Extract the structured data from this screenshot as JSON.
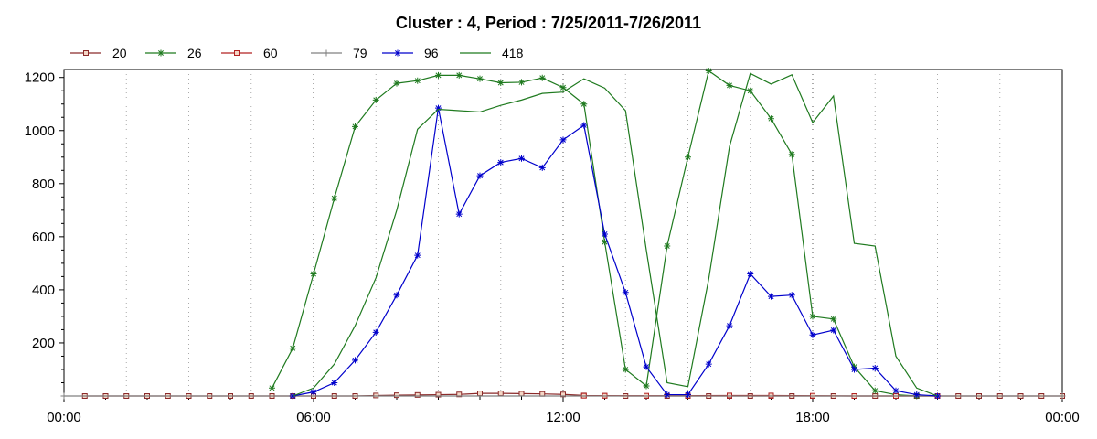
{
  "chart_data": {
    "type": "line",
    "title": "Cluster : 4, Period : 7/25/2011-7/26/2011",
    "x_unit": "hours",
    "x_range": [
      0,
      24
    ],
    "x_ticks": [
      0,
      6,
      12,
      18,
      24
    ],
    "x_tick_labels": [
      "00:00",
      "06:00",
      "12:00",
      "18:00",
      "00:00"
    ],
    "y_range": [
      0,
      1230
    ],
    "y_ticks": [
      200,
      400,
      600,
      800,
      1000,
      1200
    ],
    "y_tick_labels": [
      "200",
      "400",
      "600",
      "800",
      "1000",
      "1200"
    ],
    "grid": "vertical dotted lines",
    "legend_position": "top-left",
    "series": [
      {
        "name": "20",
        "color": "#8b2a2a",
        "marker": "square",
        "x": [
          0.5,
          1,
          1.5,
          2,
          2.5,
          3,
          3.5,
          4,
          4.5,
          5,
          5.5,
          6,
          6.5,
          7,
          7.5,
          8,
          8.5,
          9,
          9.5,
          10,
          10.5,
          11,
          11.5,
          12,
          12.5,
          13,
          13.5,
          14,
          14.5,
          15,
          15.5,
          16,
          16.5,
          17,
          17.5,
          18,
          18.5,
          19,
          19.5,
          20,
          20.5,
          21,
          21.5,
          22,
          22.5,
          23,
          23.5,
          24
        ],
        "y": [
          0,
          0,
          0,
          0,
          0,
          0,
          0,
          0,
          0,
          0,
          0,
          0,
          0,
          0,
          2,
          3,
          4,
          5,
          6,
          10,
          10,
          9,
          8,
          6,
          2,
          1,
          0,
          0,
          0,
          0,
          0,
          0,
          0,
          0,
          0,
          0,
          0,
          0,
          0,
          0,
          0,
          0,
          0,
          0,
          0,
          0,
          0,
          0
        ]
      },
      {
        "name": "26",
        "color": "#1f7a1f",
        "marker": "star",
        "x": [
          5,
          5.5,
          6,
          6.5,
          7,
          7.5,
          8,
          8.5,
          9,
          9.5,
          10,
          10.5,
          11,
          11.5,
          12,
          12.5,
          13,
          13.5,
          14,
          14.5,
          15,
          15.5,
          16,
          16.5,
          17,
          17.5,
          18,
          18.5,
          19,
          19.5,
          20,
          20.5
        ],
        "y": [
          30,
          180,
          460,
          745,
          1015,
          1115,
          1178,
          1188,
          1208,
          1208,
          1195,
          1180,
          1182,
          1198,
          1162,
          1100,
          580,
          100,
          38,
          565,
          900,
          1225,
          1170,
          1150,
          1045,
          910,
          300,
          290,
          110,
          20,
          5,
          0
        ]
      },
      {
        "name": "60",
        "color": "#b22222",
        "marker": "square",
        "x": [
          12.5,
          13,
          14,
          15,
          16,
          17,
          18,
          19,
          20,
          21
        ],
        "y": [
          1,
          1,
          1,
          1,
          2,
          2,
          1,
          0,
          0,
          0
        ]
      },
      {
        "name": "79",
        "color": "#808080",
        "marker": "plus",
        "x": [
          0,
          24
        ],
        "y": [
          0,
          0
        ]
      },
      {
        "name": "96",
        "color": "#0000cc",
        "marker": "star",
        "x": [
          5.5,
          6,
          6.5,
          7,
          7.5,
          8,
          8.5,
          9,
          9.5,
          10,
          10.5,
          11,
          11.5,
          12,
          12.5,
          13,
          13.5,
          14,
          14.5,
          15,
          15.5,
          16,
          16.5,
          17,
          17.5,
          18,
          18.5,
          19,
          19.5,
          20,
          20.5,
          21
        ],
        "y": [
          0,
          15,
          50,
          135,
          240,
          380,
          530,
          1085,
          685,
          830,
          880,
          895,
          860,
          965,
          1020,
          610,
          390,
          110,
          5,
          5,
          120,
          265,
          460,
          375,
          380,
          230,
          248,
          100,
          105,
          20,
          5,
          0
        ]
      },
      {
        "name": "418",
        "color": "#1f7a1f",
        "marker": "none",
        "x": [
          5.5,
          6,
          6.5,
          7,
          7.5,
          8,
          8.5,
          9,
          9.5,
          10,
          10.5,
          11,
          11.5,
          12,
          12.5,
          13,
          13.5,
          14,
          14.5,
          15,
          15.5,
          16,
          16.5,
          17,
          17.5,
          18,
          18.5,
          19,
          19.5,
          20,
          20.5,
          21
        ],
        "y": [
          0,
          30,
          120,
          265,
          445,
          700,
          1005,
          1080,
          1075,
          1070,
          1095,
          1115,
          1140,
          1145,
          1195,
          1160,
          1075,
          550,
          50,
          35,
          440,
          940,
          1215,
          1175,
          1210,
          1030,
          1130,
          575,
          565,
          150,
          30,
          0
        ]
      }
    ]
  }
}
